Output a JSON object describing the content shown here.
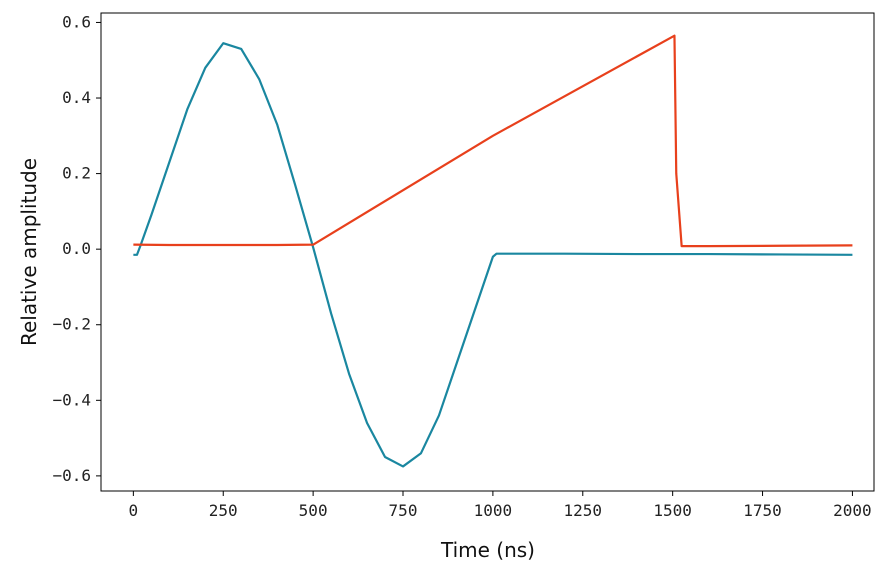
{
  "chart_data": {
    "type": "line",
    "xlabel": "Time (ns)",
    "ylabel": "Relative amplitude",
    "xlim": [
      -90,
      2060
    ],
    "ylim": [
      -0.64,
      0.625
    ],
    "xticks": [
      0,
      250,
      500,
      750,
      1000,
      1250,
      1500,
      1750,
      2000
    ],
    "xtick_labels": [
      "0",
      "250",
      "500",
      "750",
      "1000",
      "1250",
      "1500",
      "1750",
      "2000"
    ],
    "yticks": [
      -0.6,
      -0.4,
      -0.2,
      0.0,
      0.2,
      0.4,
      0.6
    ],
    "ytick_labels": [
      "−0.6",
      "−0.4",
      "−0.2",
      "0.0",
      "0.2",
      "0.4",
      "0.6"
    ],
    "grid": false,
    "series": [
      {
        "color": "#1a87a0",
        "x": [
          0,
          10,
          20,
          50,
          100,
          150,
          200,
          250,
          300,
          350,
          400,
          450,
          500,
          550,
          600,
          650,
          700,
          750,
          800,
          850,
          900,
          950,
          1000,
          1010,
          1200,
          1400,
          1600,
          1800,
          2000
        ],
        "y": [
          -0.015,
          -0.015,
          0.01,
          0.09,
          0.23,
          0.37,
          0.48,
          0.545,
          0.53,
          0.45,
          0.33,
          0.17,
          0.005,
          -0.17,
          -0.33,
          -0.46,
          -0.55,
          -0.575,
          -0.54,
          -0.44,
          -0.3,
          -0.16,
          -0.02,
          -0.012,
          -0.012,
          -0.013,
          -0.013,
          -0.014,
          -0.015
        ]
      },
      {
        "color": "#e8401c",
        "x": [
          0,
          100,
          200,
          300,
          400,
          500,
          1000,
          1505,
          1510,
          1525,
          1600,
          1800,
          2000
        ],
        "y": [
          0.012,
          0.011,
          0.011,
          0.011,
          0.011,
          0.012,
          0.3,
          0.565,
          0.2,
          0.008,
          0.008,
          0.009,
          0.01
        ]
      }
    ]
  }
}
